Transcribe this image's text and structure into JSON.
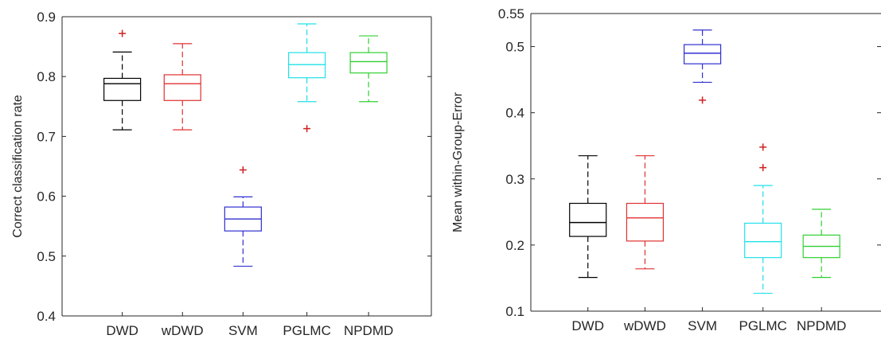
{
  "chart_data": [
    {
      "type": "box",
      "title": "",
      "xlabel": "",
      "ylabel": "Correct classification rate",
      "ylim": [
        0.4,
        0.9
      ],
      "yticks": [
        "0.4",
        "0.5",
        "0.6",
        "0.7",
        "0.8",
        "0.9"
      ],
      "categories": [
        "DWD",
        "wDWD",
        "SVM",
        "PGLMC",
        "NPDMD"
      ],
      "colors": [
        "#000000",
        "#e03030",
        "#3030d0",
        "#20e0e8",
        "#30d030"
      ],
      "outlier_color": "#d02020",
      "boxes": [
        {
          "whisker_low": 0.711,
          "q1": 0.76,
          "median": 0.788,
          "q3": 0.797,
          "whisker_high": 0.841,
          "outliers": [
            0.872
          ]
        },
        {
          "whisker_low": 0.711,
          "q1": 0.76,
          "median": 0.788,
          "q3": 0.803,
          "whisker_high": 0.855,
          "outliers": []
        },
        {
          "whisker_low": 0.483,
          "q1": 0.542,
          "median": 0.562,
          "q3": 0.582,
          "whisker_high": 0.599,
          "outliers": [
            0.644
          ]
        },
        {
          "whisker_low": 0.758,
          "q1": 0.798,
          "median": 0.82,
          "q3": 0.84,
          "whisker_high": 0.888,
          "outliers": [
            0.713
          ]
        },
        {
          "whisker_low": 0.758,
          "q1": 0.806,
          "median": 0.825,
          "q3": 0.84,
          "whisker_high": 0.868,
          "outliers": []
        }
      ]
    },
    {
      "type": "box",
      "title": "",
      "xlabel": "",
      "ylabel": "Mean within-Group-Error",
      "ylim": [
        0.1,
        0.55
      ],
      "yticks": [
        "0.1",
        "0.2",
        "0.3",
        "0.4",
        "0.5",
        "0.55"
      ],
      "categories": [
        "DWD",
        "wDWD",
        "SVM",
        "PGLMC",
        "NPDMD"
      ],
      "colors": [
        "#000000",
        "#e03030",
        "#3030d0",
        "#20e0e8",
        "#30d030"
      ],
      "outlier_color": "#d02020",
      "boxes": [
        {
          "whisker_low": 0.151,
          "q1": 0.213,
          "median": 0.234,
          "q3": 0.263,
          "whisker_high": 0.335,
          "outliers": []
        },
        {
          "whisker_low": 0.164,
          "q1": 0.206,
          "median": 0.241,
          "q3": 0.263,
          "whisker_high": 0.335,
          "outliers": []
        },
        {
          "whisker_low": 0.446,
          "q1": 0.474,
          "median": 0.49,
          "q3": 0.503,
          "whisker_high": 0.525,
          "outliers": [
            0.419
          ]
        },
        {
          "whisker_low": 0.127,
          "q1": 0.181,
          "median": 0.205,
          "q3": 0.233,
          "whisker_high": 0.29,
          "outliers": [
            0.317,
            0.348
          ]
        },
        {
          "whisker_low": 0.151,
          "q1": 0.181,
          "median": 0.198,
          "q3": 0.215,
          "whisker_high": 0.254,
          "outliers": []
        }
      ]
    }
  ]
}
